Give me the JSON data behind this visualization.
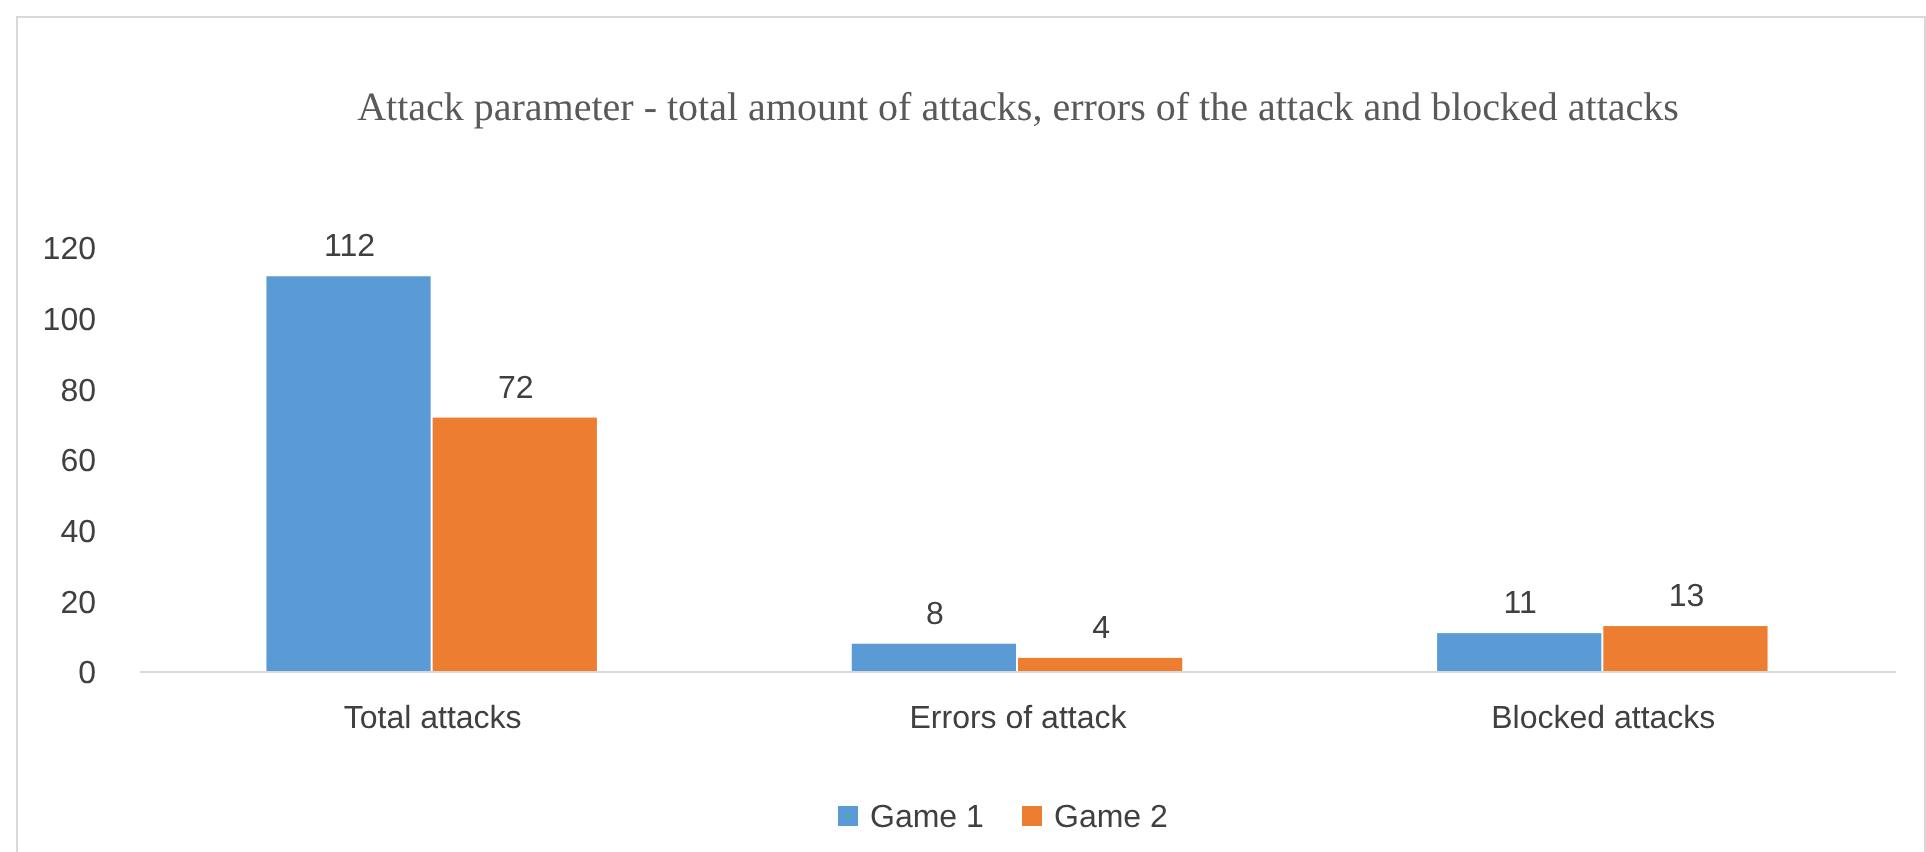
{
  "chart_data": {
    "type": "bar",
    "title": "Attack parameter - total amount of attacks, errors of the attack and blocked attacks",
    "categories": [
      "Total attacks",
      "Errors of attack",
      "Blocked attacks"
    ],
    "series": [
      {
        "name": "Game 1",
        "color": "#5b9bd5",
        "values": [
          112,
          8,
          11
        ]
      },
      {
        "name": "Game 2",
        "color": "#ed7d31",
        "values": [
          72,
          4,
          13
        ]
      }
    ],
    "ylim": [
      0,
      120
    ],
    "yticks": [
      0,
      20,
      40,
      60,
      80,
      100,
      120
    ],
    "grid": false,
    "legend": "bottom",
    "data_labels": true
  }
}
